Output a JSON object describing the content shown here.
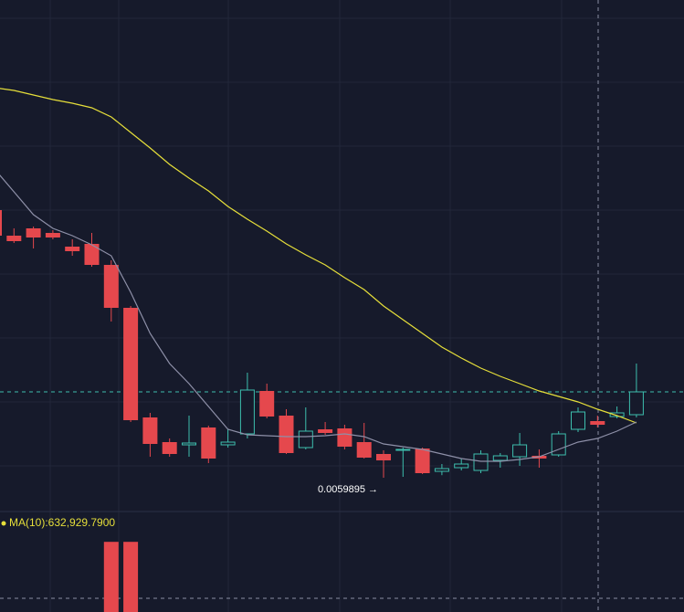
{
  "chart_data": {
    "type": "candlestick",
    "up_color": "#3dbfae",
    "down_color": "#e5484d",
    "ylim": [
      0.00589,
      0.00729
    ],
    "open": [
      0.006715,
      0.006645,
      0.006665,
      0.0066525,
      0.006615,
      0.0066225,
      0.006565,
      0.0064475,
      0.0061475,
      0.00608,
      0.0060725,
      0.00612,
      0.0060725,
      0.0061025,
      0.00622,
      0.0061525,
      0.006065,
      0.006115,
      0.0061175,
      0.00608,
      0.0060475,
      0.0060575,
      0.0060625,
      0.006,
      0.00601,
      0.0060025,
      0.00603,
      0.00604,
      0.0060425,
      0.006045,
      0.006115,
      0.0061375,
      0.00615,
      0.006155
    ],
    "high": [
      0.00672,
      0.006665,
      0.00667,
      0.00666,
      0.006635,
      0.0066525,
      0.0065775,
      0.0064525,
      0.00616,
      0.00609,
      0.0061525,
      0.006125,
      0.006115,
      0.00627,
      0.00624,
      0.00617,
      0.006175,
      0.006135,
      0.0061275,
      0.0061325,
      0.0060575,
      0.006065,
      0.006065,
      0.00602,
      0.006035,
      0.0060575,
      0.00605,
      0.006105,
      0.00606,
      0.00611,
      0.006175,
      0.0061525,
      0.0061775,
      0.006295
    ],
    "low": [
      0.006635,
      0.006625,
      0.00661,
      0.006635,
      0.00659,
      0.00656,
      0.00641,
      0.006135,
      0.00604,
      0.00604,
      0.00604,
      0.0060225,
      0.006065,
      0.00609,
      0.006145,
      0.0060475,
      0.00606,
      0.0061,
      0.00606,
      0.006035,
      0.0059825,
      0.005985,
      0.0059925,
      0.0059895,
      0.0060025,
      0.005995,
      0.00601,
      0.006015,
      0.00601,
      0.00604,
      0.0061075,
      0.00612,
      0.006145,
      0.0061475
    ],
    "close": [
      0.006645,
      0.00663,
      0.00664,
      0.00664,
      0.0066025,
      0.006565,
      0.0064475,
      0.00614,
      0.006075,
      0.0060475,
      0.0060775,
      0.006035,
      0.00608,
      0.0062225,
      0.00615,
      0.00605,
      0.00611,
      0.006105,
      0.0060675,
      0.0060375,
      0.00603,
      0.00606,
      0.005995,
      0.0060075,
      0.00602,
      0.0060475,
      0.0060425,
      0.0060725,
      0.006035,
      0.0061025,
      0.0061625,
      0.0061275,
      0.00616,
      0.0062175
    ],
    "overlays": [
      {
        "color": "#e6df3a",
        "values": [
          0.00705,
          0.0070425,
          0.00703,
          0.0070175,
          0.0070075,
          0.006995,
          0.00697,
          0.0069275,
          0.006885,
          0.00684,
          0.0068025,
          0.0067675,
          0.006725,
          0.00669,
          0.0066575,
          0.0066225,
          0.0065925,
          0.006565,
          0.00653,
          0.0064975,
          0.0064525,
          0.006415,
          0.0063775,
          0.00634,
          0.00631,
          0.0062825,
          0.00626,
          0.00624,
          0.00622,
          0.006205,
          0.00619,
          0.00617,
          0.0061525,
          0.0061325
        ]
      },
      {
        "color": "#8e90a8",
        "values": [
          0.0068275,
          0.006765,
          0.0067025,
          0.006665,
          0.006645,
          0.00662,
          0.00659,
          0.00649,
          0.0063775,
          0.006295,
          0.00624,
          0.0061775,
          0.006115,
          0.0061,
          0.0060975,
          0.006095,
          0.006095,
          0.0060975,
          0.0061025,
          0.006095,
          0.006075,
          0.0060675,
          0.00606,
          0.0060475,
          0.006035,
          0.0060275,
          0.0060275,
          0.0060325,
          0.00604,
          0.00606,
          0.00608,
          0.00609,
          0.00611,
          0.006135
        ]
      }
    ],
    "annotations": [
      {
        "text": "0.0059895 →"
      }
    ],
    "volume_label": "MA(10):632,929.7900",
    "volume": [
      null,
      null,
      null,
      null,
      null,
      null,
      2400000,
      2400000,
      null,
      null,
      null,
      null,
      null,
      null,
      null,
      null,
      null,
      null,
      null,
      null,
      null,
      null,
      null,
      null,
      null,
      null,
      null,
      null,
      null,
      null,
      null,
      null,
      null,
      null
    ],
    "y2lim": [
      0,
      2500000
    ]
  }
}
